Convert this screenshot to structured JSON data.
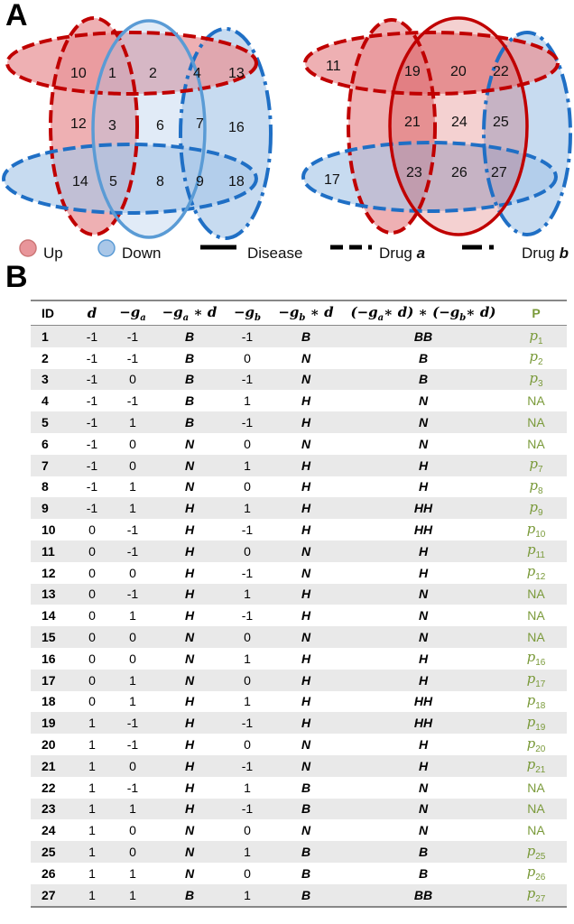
{
  "panel_a": {
    "label": "A",
    "diagram_left": {
      "regions": [
        "10",
        "1",
        "2",
        "4",
        "13",
        "12",
        "3",
        "6",
        "7",
        "16",
        "14",
        "5",
        "8",
        "9",
        "18"
      ]
    },
    "diagram_right": {
      "regions": [
        "11",
        "19",
        "20",
        "22",
        "21",
        "24",
        "25",
        "17",
        "23",
        "26",
        "27"
      ]
    },
    "legend": {
      "up": "Up",
      "down": "Down",
      "disease": "Disease",
      "drug_a_prefix": "Drug ",
      "drug_a_var": "a",
      "drug_b_prefix": "Drug ",
      "drug_b_var": "b"
    },
    "colors": {
      "up_fill": "#e8959a",
      "down_fill": "#a9c7e8",
      "red": "#c00000",
      "blue": "#1f6fc5",
      "disease_blue": "#5a9bd5"
    }
  },
  "panel_b": {
    "label": "B",
    "headers": {
      "id": "ID",
      "d": "d",
      "ga_minus": "−",
      "ga_g": "g",
      "ga_sub": "a",
      "gad": "−g",
      "gad_sub": "a",
      "gad_tail": " ∗ d",
      "gb_minus": "−",
      "gb_g": "g",
      "gb_sub": "b",
      "gbd": "−g",
      "gbd_sub": "b",
      "gbd_tail": " ∗ d",
      "prod_1": "(−g",
      "prod_1_sub": "a",
      "prod_2": "∗ d) ∗ (−g",
      "prod_2_sub": "b",
      "prod_3": "∗ d)",
      "p": "P"
    },
    "rows": [
      {
        "id": "1",
        "d": "-1",
        "ga": "-1",
        "gad": "B",
        "gb": "-1",
        "gbd": "B",
        "prod": "BB",
        "p": "p",
        "p_sub": "1"
      },
      {
        "id": "2",
        "d": "-1",
        "ga": "-1",
        "gad": "B",
        "gb": "0",
        "gbd": "N",
        "prod": "B",
        "p": "p",
        "p_sub": "2"
      },
      {
        "id": "3",
        "d": "-1",
        "ga": "0",
        "gad": "B",
        "gb": "-1",
        "gbd": "N",
        "prod": "B",
        "p": "p",
        "p_sub": "3"
      },
      {
        "id": "4",
        "d": "-1",
        "ga": "-1",
        "gad": "B",
        "gb": "1",
        "gbd": "H",
        "prod": "N",
        "p": "NA",
        "p_sub": ""
      },
      {
        "id": "5",
        "d": "-1",
        "ga": "1",
        "gad": "B",
        "gb": "-1",
        "gbd": "H",
        "prod": "N",
        "p": "NA",
        "p_sub": ""
      },
      {
        "id": "6",
        "d": "-1",
        "ga": "0",
        "gad": "N",
        "gb": "0",
        "gbd": "N",
        "prod": "N",
        "p": "NA",
        "p_sub": ""
      },
      {
        "id": "7",
        "d": "-1",
        "ga": "0",
        "gad": "N",
        "gb": "1",
        "gbd": "H",
        "prod": "H",
        "p": "p",
        "p_sub": "7"
      },
      {
        "id": "8",
        "d": "-1",
        "ga": "1",
        "gad": "N",
        "gb": "0",
        "gbd": "H",
        "prod": "H",
        "p": "p",
        "p_sub": "8"
      },
      {
        "id": "9",
        "d": "-1",
        "ga": "1",
        "gad": "H",
        "gb": "1",
        "gbd": "H",
        "prod": "HH",
        "p": "p",
        "p_sub": "9"
      },
      {
        "id": "10",
        "d": "0",
        "ga": "-1",
        "gad": "H",
        "gb": "-1",
        "gbd": "H",
        "prod": "HH",
        "p": "p",
        "p_sub": "10"
      },
      {
        "id": "11",
        "d": "0",
        "ga": "-1",
        "gad": "H",
        "gb": "0",
        "gbd": "N",
        "prod": "H",
        "p": "p",
        "p_sub": "11"
      },
      {
        "id": "12",
        "d": "0",
        "ga": "0",
        "gad": "H",
        "gb": "-1",
        "gbd": "N",
        "prod": "H",
        "p": "p",
        "p_sub": "12"
      },
      {
        "id": "13",
        "d": "0",
        "ga": "-1",
        "gad": "H",
        "gb": "1",
        "gbd": "H",
        "prod": "N",
        "p": "NA",
        "p_sub": ""
      },
      {
        "id": "14",
        "d": "0",
        "ga": "1",
        "gad": "H",
        "gb": "-1",
        "gbd": "H",
        "prod": "N",
        "p": "NA",
        "p_sub": ""
      },
      {
        "id": "15",
        "d": "0",
        "ga": "0",
        "gad": "N",
        "gb": "0",
        "gbd": "N",
        "prod": "N",
        "p": "NA",
        "p_sub": ""
      },
      {
        "id": "16",
        "d": "0",
        "ga": "0",
        "gad": "N",
        "gb": "1",
        "gbd": "H",
        "prod": "H",
        "p": "p",
        "p_sub": "16"
      },
      {
        "id": "17",
        "d": "0",
        "ga": "1",
        "gad": "N",
        "gb": "0",
        "gbd": "H",
        "prod": "H",
        "p": "p",
        "p_sub": "17"
      },
      {
        "id": "18",
        "d": "0",
        "ga": "1",
        "gad": "H",
        "gb": "1",
        "gbd": "H",
        "prod": "HH",
        "p": "p",
        "p_sub": "18"
      },
      {
        "id": "19",
        "d": "1",
        "ga": "-1",
        "gad": "H",
        "gb": "-1",
        "gbd": "H",
        "prod": "HH",
        "p": "p",
        "p_sub": "19"
      },
      {
        "id": "20",
        "d": "1",
        "ga": "-1",
        "gad": "H",
        "gb": "0",
        "gbd": "N",
        "prod": "H",
        "p": "p",
        "p_sub": "20"
      },
      {
        "id": "21",
        "d": "1",
        "ga": "0",
        "gad": "H",
        "gb": "-1",
        "gbd": "N",
        "prod": "H",
        "p": "p",
        "p_sub": "21"
      },
      {
        "id": "22",
        "d": "1",
        "ga": "-1",
        "gad": "H",
        "gb": "1",
        "gbd": "B",
        "prod": "N",
        "p": "NA",
        "p_sub": ""
      },
      {
        "id": "23",
        "d": "1",
        "ga": "1",
        "gad": "H",
        "gb": "-1",
        "gbd": "B",
        "prod": "N",
        "p": "NA",
        "p_sub": ""
      },
      {
        "id": "24",
        "d": "1",
        "ga": "0",
        "gad": "N",
        "gb": "0",
        "gbd": "N",
        "prod": "N",
        "p": "NA",
        "p_sub": ""
      },
      {
        "id": "25",
        "d": "1",
        "ga": "0",
        "gad": "N",
        "gb": "1",
        "gbd": "B",
        "prod": "B",
        "p": "p",
        "p_sub": "25"
      },
      {
        "id": "26",
        "d": "1",
        "ga": "1",
        "gad": "N",
        "gb": "0",
        "gbd": "B",
        "prod": "B",
        "p": "p",
        "p_sub": "26"
      },
      {
        "id": "27",
        "d": "1",
        "ga": "1",
        "gad": "B",
        "gb": "1",
        "gbd": "B",
        "prod": "BB",
        "p": "p",
        "p_sub": "27"
      }
    ]
  }
}
